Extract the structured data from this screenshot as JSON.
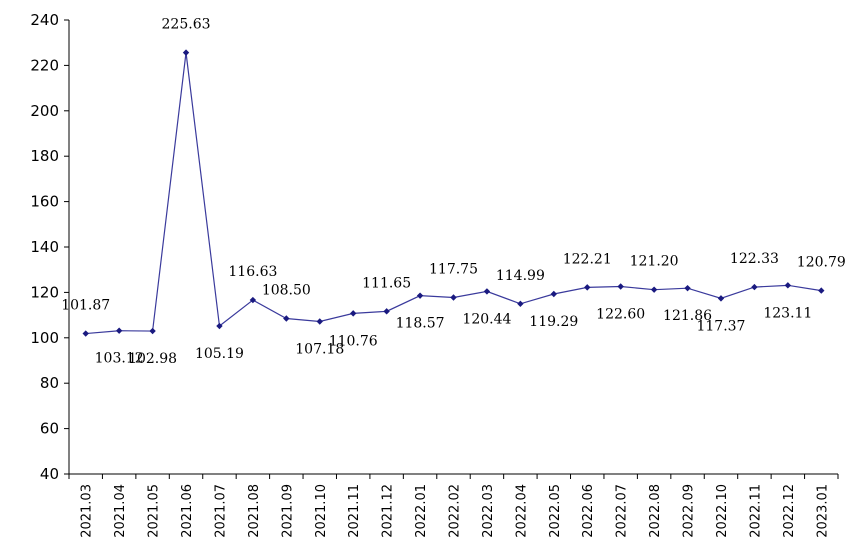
{
  "chart_data": {
    "type": "line",
    "title": "",
    "xlabel": "",
    "ylabel": "",
    "ylim": [
      40,
      240
    ],
    "yticks": [
      40,
      60,
      80,
      100,
      120,
      140,
      160,
      180,
      200,
      220,
      240
    ],
    "grid": false,
    "legend": "none",
    "colors": {
      "line": "#3a3a9c",
      "marker": "#1a1a80"
    },
    "categories": [
      "2021.03",
      "2021.04",
      "2021.05",
      "2021.06",
      "2021.07",
      "2021.08",
      "2021.09",
      "2021.10",
      "2021.11",
      "2021.12",
      "2022.01",
      "2022.02",
      "2022.03",
      "2022.04",
      "2022.05",
      "2022.06",
      "2022.07",
      "2022.08",
      "2022.09",
      "2022.10",
      "2022.11",
      "2022.12",
      "2023.01"
    ],
    "series": [
      {
        "values": [
          101.87,
          103.12,
          102.98,
          225.63,
          105.19,
          116.63,
          108.5,
          107.18,
          110.76,
          111.65,
          118.57,
          117.75,
          120.44,
          114.99,
          119.29,
          122.21,
          122.6,
          121.2,
          121.86,
          117.37,
          122.33,
          123.11,
          120.79
        ],
        "labels": [
          "101.87",
          "103.12",
          "102.98",
          "225.63",
          "105.19",
          "116.63",
          "108.50",
          "107.18",
          "110.76",
          "111.65",
          "118.57",
          "117.75",
          "120.44",
          "114.99",
          "119.29",
          "122.21",
          "122.60",
          "121.20",
          "121.86",
          "117.37",
          "122.33",
          "123.11",
          "120.79"
        ],
        "label_position": [
          "above",
          "below",
          "below",
          "above",
          "below",
          "above",
          "above",
          "below",
          "below",
          "above",
          "below",
          "above",
          "below",
          "above",
          "below",
          "above",
          "below",
          "above",
          "below",
          "below",
          "above",
          "below",
          "above"
        ]
      }
    ]
  }
}
